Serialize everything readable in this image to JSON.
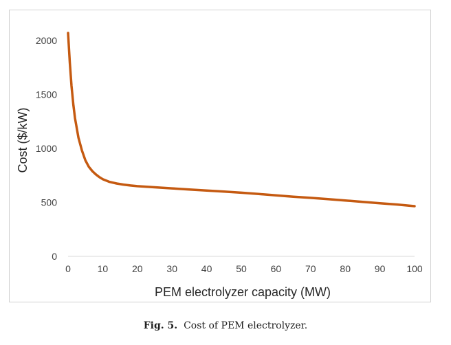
{
  "caption": {
    "label": "Fig. 5.",
    "text": "Cost of PEM electrolyzer."
  },
  "colors": {
    "line": "#c55a11",
    "axis": "#d9d9d9"
  },
  "chart_data": {
    "type": "line",
    "title": "",
    "xlabel": "PEM electrolyzer capacity (MW)",
    "ylabel": "Cost ($/kW)",
    "xlim": [
      0,
      100
    ],
    "ylim": [
      0,
      2000
    ],
    "xticks": [
      0,
      10,
      20,
      30,
      40,
      50,
      60,
      70,
      80,
      90,
      100
    ],
    "yticks": [
      0,
      500,
      1000,
      1500,
      2000
    ],
    "grid": false,
    "legend": "none",
    "series": [
      {
        "x": [
          0,
          0.5,
          1,
          1.5,
          2,
          3,
          4,
          5,
          6,
          7,
          8,
          9,
          10,
          12,
          14,
          16,
          18,
          20,
          25,
          30,
          35,
          40,
          45,
          50,
          55,
          60,
          65,
          70,
          75,
          80,
          85,
          90,
          95,
          100
        ],
        "y": [
          2070,
          1800,
          1580,
          1410,
          1280,
          1100,
          980,
          890,
          830,
          790,
          760,
          735,
          715,
          690,
          675,
          665,
          657,
          650,
          640,
          630,
          620,
          610,
          600,
          590,
          578,
          565,
          553,
          542,
          530,
          518,
          505,
          492,
          480,
          465
        ]
      }
    ]
  }
}
